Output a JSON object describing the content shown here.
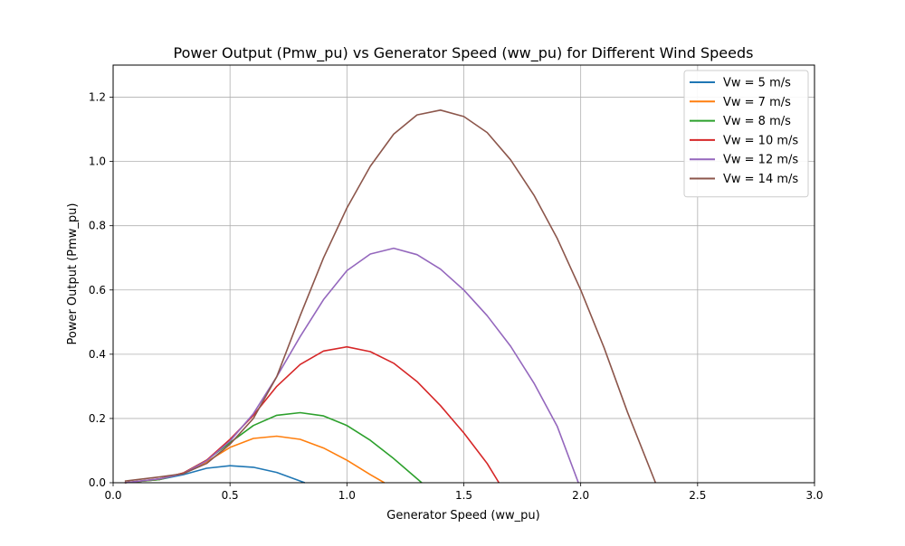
{
  "chart_data": {
    "type": "line",
    "title": "Power Output (Pmw_pu) vs Generator Speed (ww_pu) for Different Wind Speeds",
    "xlabel": "Generator Speed (ww_pu)",
    "ylabel": "Power Output (Pmw_pu)",
    "xlim": [
      0,
      3.0
    ],
    "ylim": [
      0,
      1.3
    ],
    "xticks": [
      0,
      0.5,
      1.0,
      1.5,
      2.0,
      2.5,
      3.0
    ],
    "xtick_labels": [
      "0.0",
      "0.5",
      "1.0",
      "1.5",
      "2.0",
      "2.5",
      "3.0"
    ],
    "yticks": [
      0,
      0.2,
      0.4,
      0.6,
      0.8,
      1.0,
      1.2
    ],
    "ytick_labels": [
      "0.0",
      "0.2",
      "0.4",
      "0.6",
      "0.8",
      "1.0",
      "1.2"
    ],
    "grid": true,
    "legend_position": "top-right",
    "series": [
      {
        "name": "Vw = 5 m/s",
        "color": "#1f77b4",
        "points": [
          [
            0.05,
            0.0
          ],
          [
            0.2,
            0.01
          ],
          [
            0.3,
            0.025
          ],
          [
            0.4,
            0.045
          ],
          [
            0.5,
            0.053
          ],
          [
            0.6,
            0.048
          ],
          [
            0.7,
            0.032
          ],
          [
            0.82,
            0.0
          ]
        ]
      },
      {
        "name": "Vw = 7 m/s",
        "color": "#ff7f0e",
        "points": [
          [
            0.05,
            0.0
          ],
          [
            0.2,
            0.01
          ],
          [
            0.3,
            0.03
          ],
          [
            0.4,
            0.065
          ],
          [
            0.5,
            0.11
          ],
          [
            0.6,
            0.138
          ],
          [
            0.7,
            0.145
          ],
          [
            0.8,
            0.135
          ],
          [
            0.9,
            0.108
          ],
          [
            1.0,
            0.07
          ],
          [
            1.1,
            0.025
          ],
          [
            1.16,
            0.0
          ]
        ]
      },
      {
        "name": "Vw = 8 m/s",
        "color": "#2ca02c",
        "points": [
          [
            0.05,
            0.0
          ],
          [
            0.2,
            0.01
          ],
          [
            0.3,
            0.03
          ],
          [
            0.4,
            0.07
          ],
          [
            0.5,
            0.125
          ],
          [
            0.6,
            0.178
          ],
          [
            0.7,
            0.21
          ],
          [
            0.8,
            0.218
          ],
          [
            0.9,
            0.208
          ],
          [
            1.0,
            0.178
          ],
          [
            1.1,
            0.132
          ],
          [
            1.2,
            0.075
          ],
          [
            1.32,
            0.0
          ]
        ]
      },
      {
        "name": "Vw = 10 m/s",
        "color": "#d62728",
        "points": [
          [
            0.05,
            0.0
          ],
          [
            0.2,
            0.012
          ],
          [
            0.3,
            0.03
          ],
          [
            0.4,
            0.07
          ],
          [
            0.5,
            0.135
          ],
          [
            0.6,
            0.21
          ],
          [
            0.7,
            0.3
          ],
          [
            0.8,
            0.368
          ],
          [
            0.9,
            0.41
          ],
          [
            1.0,
            0.423
          ],
          [
            1.1,
            0.408
          ],
          [
            1.2,
            0.372
          ],
          [
            1.3,
            0.315
          ],
          [
            1.4,
            0.24
          ],
          [
            1.5,
            0.155
          ],
          [
            1.6,
            0.06
          ],
          [
            1.65,
            0.0
          ]
        ]
      },
      {
        "name": "Vw = 12 m/s",
        "color": "#9467bd",
        "points": [
          [
            0.05,
            0.0
          ],
          [
            0.2,
            0.012
          ],
          [
            0.3,
            0.028
          ],
          [
            0.4,
            0.068
          ],
          [
            0.5,
            0.13
          ],
          [
            0.6,
            0.215
          ],
          [
            0.7,
            0.33
          ],
          [
            0.8,
            0.455
          ],
          [
            0.9,
            0.57
          ],
          [
            1.0,
            0.66
          ],
          [
            1.1,
            0.712
          ],
          [
            1.2,
            0.73
          ],
          [
            1.3,
            0.71
          ],
          [
            1.4,
            0.665
          ],
          [
            1.5,
            0.6
          ],
          [
            1.6,
            0.52
          ],
          [
            1.7,
            0.425
          ],
          [
            1.8,
            0.31
          ],
          [
            1.9,
            0.175
          ],
          [
            1.99,
            0.0
          ]
        ]
      },
      {
        "name": "Vw = 14 m/s",
        "color": "#8c564b",
        "points": [
          [
            0.05,
            0.005
          ],
          [
            0.2,
            0.018
          ],
          [
            0.3,
            0.028
          ],
          [
            0.4,
            0.06
          ],
          [
            0.5,
            0.12
          ],
          [
            0.6,
            0.2
          ],
          [
            0.7,
            0.33
          ],
          [
            0.8,
            0.52
          ],
          [
            0.9,
            0.7
          ],
          [
            1.0,
            0.855
          ],
          [
            1.1,
            0.985
          ],
          [
            1.2,
            1.085
          ],
          [
            1.3,
            1.145
          ],
          [
            1.4,
            1.16
          ],
          [
            1.5,
            1.14
          ],
          [
            1.6,
            1.09
          ],
          [
            1.7,
            1.005
          ],
          [
            1.8,
            0.895
          ],
          [
            1.9,
            0.76
          ],
          [
            2.0,
            0.6
          ],
          [
            2.1,
            0.42
          ],
          [
            2.2,
            0.22
          ],
          [
            2.32,
            0.0
          ]
        ]
      }
    ]
  }
}
